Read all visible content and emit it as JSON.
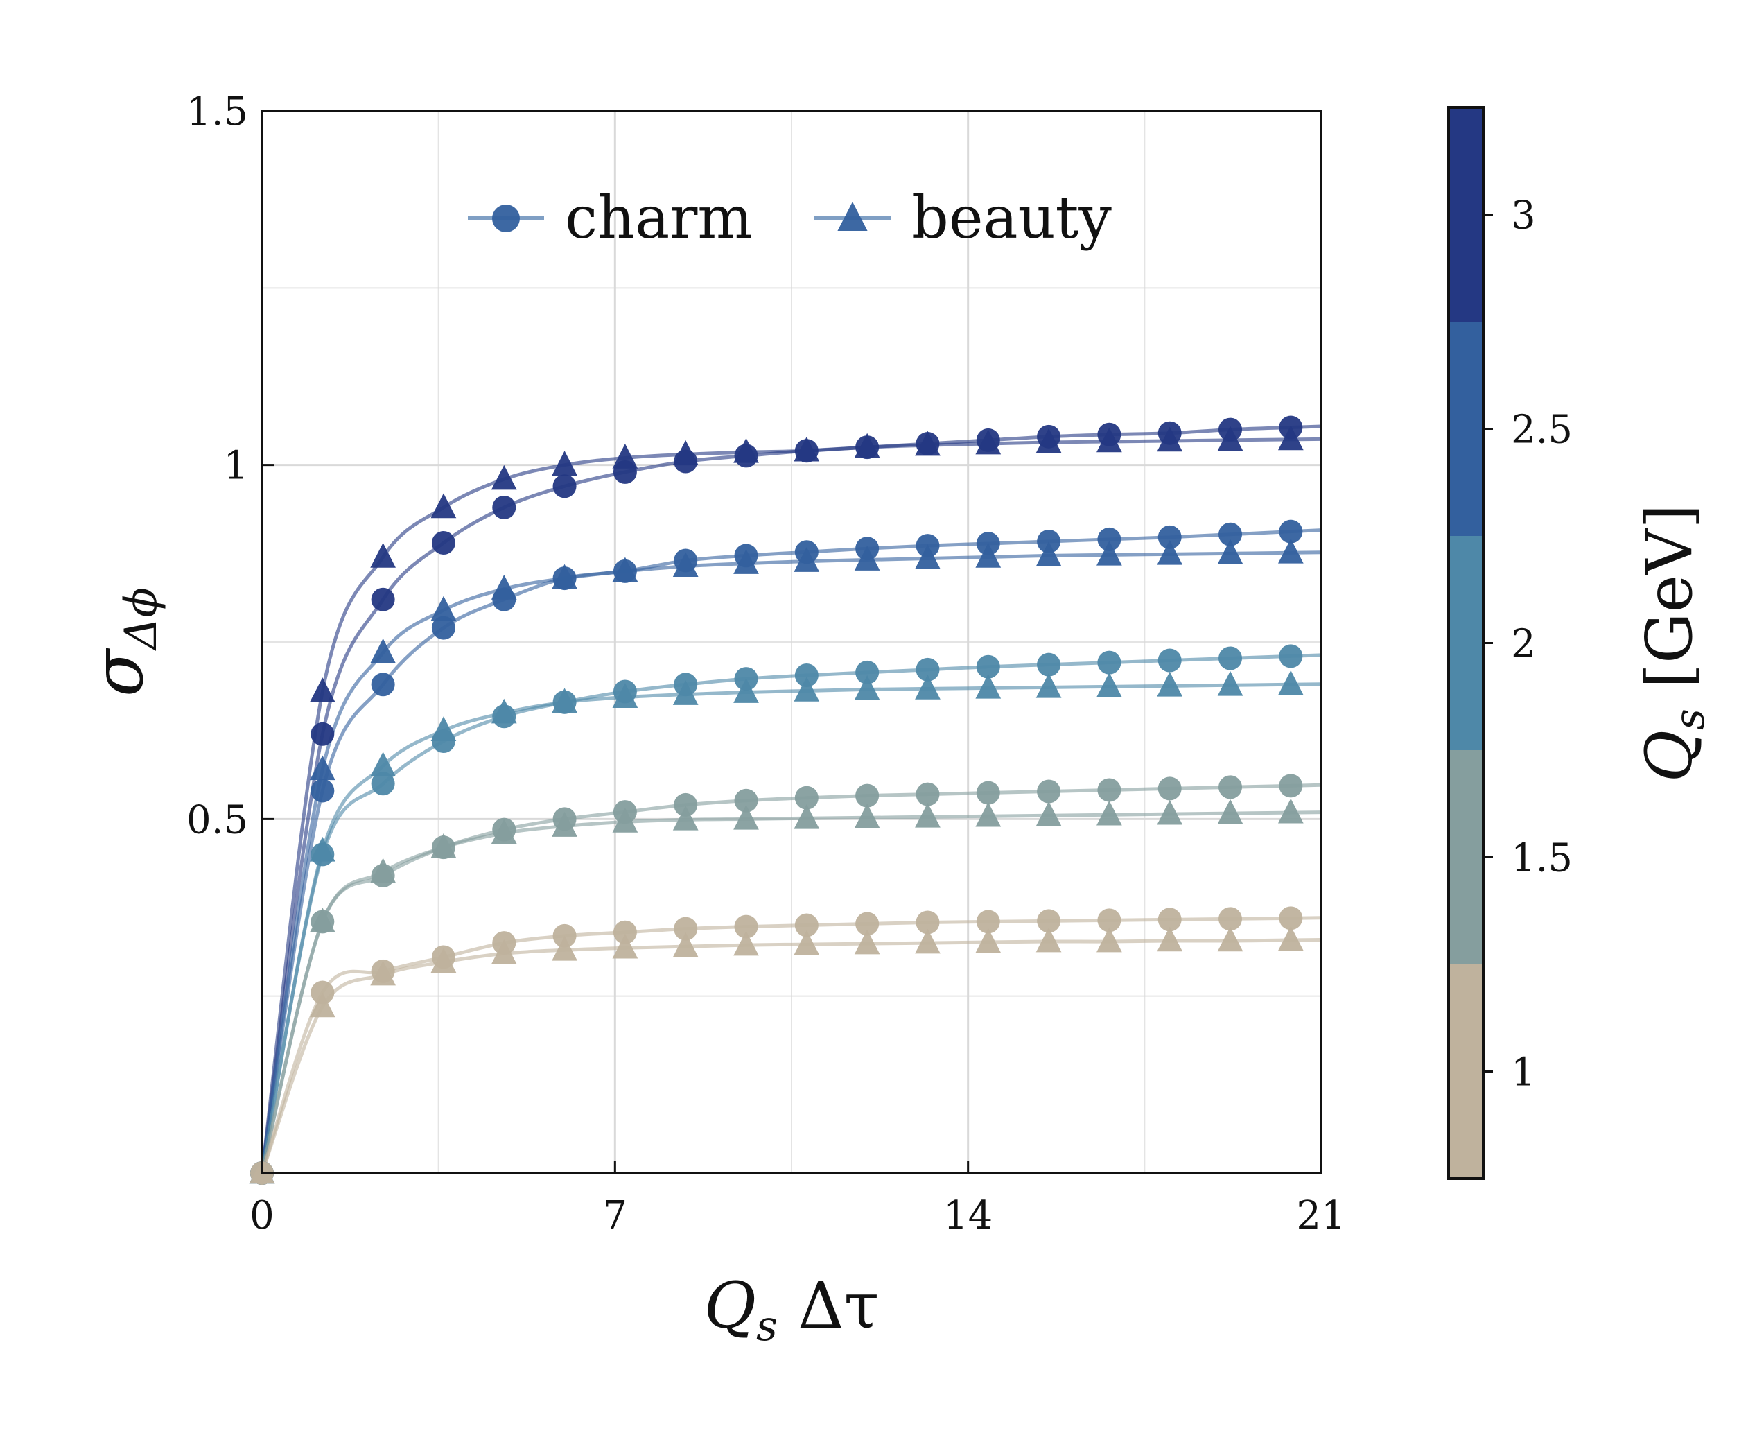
{
  "chart_data": {
    "type": "line",
    "x_label": {
      "main": "Q",
      "sub": "s",
      "rest": " Δτ"
    },
    "y_label": {
      "main": "σ",
      "sub": "Δϕ"
    },
    "xlim": [
      0,
      21
    ],
    "ylim": [
      0,
      1.5
    ],
    "x_ticks": [
      0,
      7,
      14,
      21
    ],
    "x_tick_labels": [
      "0",
      "7",
      "14",
      "21"
    ],
    "y_ticks": [
      0.5,
      1,
      1.5
    ],
    "y_tick_labels": [
      "0.5",
      "1",
      "1.5"
    ],
    "grid": true,
    "legend": {
      "position": "top-center",
      "entries": [
        {
          "label": "charm",
          "marker": "circle"
        },
        {
          "label": "beauty",
          "marker": "triangle"
        }
      ]
    },
    "colorbar": {
      "label": {
        "main": "Q",
        "sub": "s",
        "rest": " [GeV]"
      },
      "range": [
        0.75,
        3.25
      ],
      "ticks": [
        1,
        1.5,
        2,
        2.5,
        3
      ],
      "tick_labels": [
        "1",
        "1.5",
        "2",
        "2.5",
        "3"
      ],
      "bands": [
        {
          "from": 0.75,
          "to": 1.25,
          "color": "#bfb29d"
        },
        {
          "from": 1.25,
          "to": 1.75,
          "color": "#859e9e"
        },
        {
          "from": 1.75,
          "to": 2.25,
          "color": "#4e88a8"
        },
        {
          "from": 2.25,
          "to": 2.75,
          "color": "#33609e"
        },
        {
          "from": 2.75,
          "to": 3.25,
          "color": "#243883"
        }
      ]
    },
    "x": [
      0,
      1.2,
      2.4,
      3.6,
      4.8,
      6.0,
      7.2,
      8.4,
      9.6,
      10.8,
      12.0,
      13.2,
      14.4,
      15.6,
      16.8,
      18.0,
      19.2,
      20.4
    ],
    "series": [
      {
        "flavor": "charm",
        "Qs": 3,
        "color": "#243883",
        "values": [
          0,
          0.62,
          0.81,
          0.89,
          0.94,
          0.97,
          0.99,
          1.005,
          1.013,
          1.02,
          1.025,
          1.03,
          1.035,
          1.04,
          1.043,
          1.045,
          1.05,
          1.053
        ]
      },
      {
        "flavor": "beauty",
        "Qs": 3,
        "color": "#243883",
        "values": [
          0,
          0.68,
          0.87,
          0.94,
          0.98,
          1.0,
          1.01,
          1.015,
          1.018,
          1.02,
          1.025,
          1.028,
          1.03,
          1.032,
          1.033,
          1.034,
          1.035,
          1.036
        ]
      },
      {
        "flavor": "charm",
        "Qs": 2.5,
        "color": "#33609e",
        "values": [
          0,
          0.54,
          0.69,
          0.77,
          0.81,
          0.84,
          0.85,
          0.865,
          0.872,
          0.877,
          0.882,
          0.886,
          0.889,
          0.892,
          0.895,
          0.898,
          0.902,
          0.906
        ]
      },
      {
        "flavor": "beauty",
        "Qs": 2.5,
        "color": "#33609e",
        "values": [
          0,
          0.57,
          0.735,
          0.795,
          0.825,
          0.84,
          0.85,
          0.857,
          0.861,
          0.864,
          0.866,
          0.868,
          0.87,
          0.872,
          0.873,
          0.874,
          0.875,
          0.876
        ]
      },
      {
        "flavor": "charm",
        "Qs": 2,
        "color": "#4e88a8",
        "values": [
          0,
          0.45,
          0.55,
          0.61,
          0.645,
          0.665,
          0.68,
          0.69,
          0.698,
          0.703,
          0.707,
          0.711,
          0.715,
          0.718,
          0.721,
          0.724,
          0.727,
          0.73
        ]
      },
      {
        "flavor": "beauty",
        "Qs": 2,
        "color": "#4e88a8",
        "values": [
          0,
          0.455,
          0.575,
          0.625,
          0.65,
          0.665,
          0.672,
          0.676,
          0.679,
          0.681,
          0.683,
          0.684,
          0.685,
          0.686,
          0.687,
          0.688,
          0.689,
          0.69
        ]
      },
      {
        "flavor": "charm",
        "Qs": 1.5,
        "color": "#859e9e",
        "values": [
          0,
          0.355,
          0.42,
          0.46,
          0.485,
          0.5,
          0.51,
          0.52,
          0.526,
          0.53,
          0.533,
          0.535,
          0.537,
          0.539,
          0.541,
          0.543,
          0.545,
          0.547
        ]
      },
      {
        "flavor": "beauty",
        "Qs": 1.5,
        "color": "#859e9e",
        "values": [
          0,
          0.355,
          0.425,
          0.46,
          0.48,
          0.49,
          0.496,
          0.499,
          0.5,
          0.501,
          0.502,
          0.503,
          0.504,
          0.505,
          0.506,
          0.507,
          0.508,
          0.509
        ]
      },
      {
        "flavor": "charm",
        "Qs": 1,
        "color": "#bfb29d",
        "values": [
          0,
          0.255,
          0.285,
          0.305,
          0.325,
          0.335,
          0.34,
          0.345,
          0.348,
          0.35,
          0.352,
          0.354,
          0.355,
          0.356,
          0.357,
          0.358,
          0.359,
          0.36
        ]
      },
      {
        "flavor": "beauty",
        "Qs": 1,
        "color": "#bfb29d",
        "values": [
          0,
          0.235,
          0.28,
          0.298,
          0.31,
          0.315,
          0.318,
          0.32,
          0.322,
          0.323,
          0.324,
          0.325,
          0.326,
          0.327,
          0.327,
          0.328,
          0.328,
          0.329
        ]
      }
    ]
  }
}
